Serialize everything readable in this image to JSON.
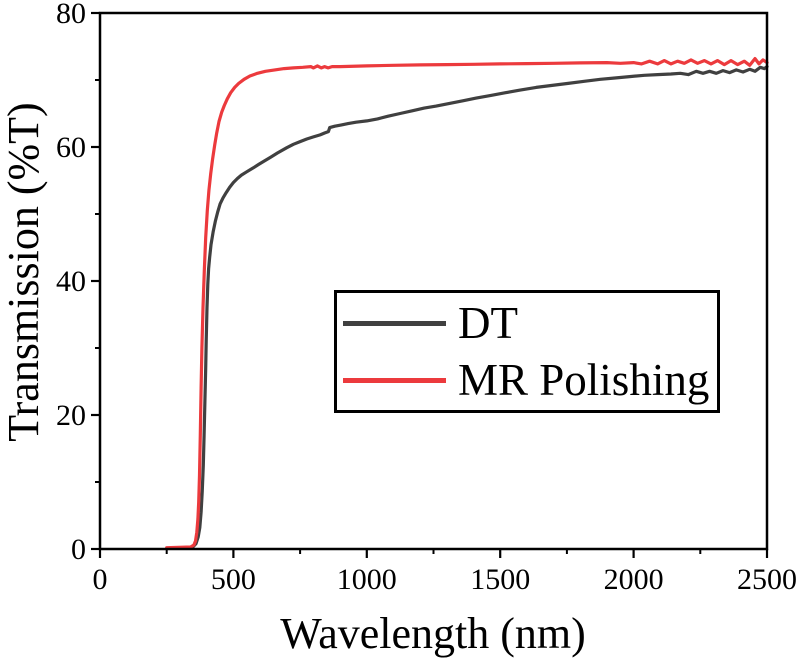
{
  "figure": {
    "xlabel": "Wavelength (nm)",
    "ylabel": "Transmission (%T)"
  },
  "style_colors": {
    "axis": "#000000",
    "background": "#ffffff",
    "dt_line": "#404040",
    "mr_polishing_line": "#ec3a3d"
  },
  "legend": {
    "position": "center-inside",
    "entries": [
      {
        "label": "DT",
        "color": "#404040"
      },
      {
        "label": "MR Polishing",
        "color": "#ec3a3d"
      }
    ]
  },
  "chart_data": {
    "type": "line",
    "title": "",
    "xlabel": "Wavelength (nm)",
    "ylabel": "Transmission (%T)",
    "xlim": [
      0,
      2500
    ],
    "ylim": [
      0,
      80
    ],
    "x_major_ticks": [
      0,
      500,
      1000,
      1500,
      2000,
      2500
    ],
    "x_minor_ticks": [
      250,
      750,
      1250,
      1750,
      2250
    ],
    "y_major_ticks": [
      0,
      20,
      40,
      60,
      80
    ],
    "y_minor_ticks": [
      10,
      30,
      50,
      70
    ],
    "grid": false,
    "legend_position": "center-inside",
    "series": [
      {
        "name": "DT",
        "color": "#404040",
        "points": [
          [
            275,
            0.1
          ],
          [
            348,
            0.3
          ],
          [
            360,
            0.8
          ],
          [
            368,
            1.8
          ],
          [
            374,
            3.2
          ],
          [
            379,
            5.5
          ],
          [
            383,
            8.5
          ],
          [
            387,
            12.5
          ],
          [
            390,
            17
          ],
          [
            393,
            22
          ],
          [
            396,
            27
          ],
          [
            398,
            31
          ],
          [
            401,
            36
          ],
          [
            404,
            39.5
          ],
          [
            407,
            41.8
          ],
          [
            411,
            43.6
          ],
          [
            416,
            45.4
          ],
          [
            424,
            47.3
          ],
          [
            432,
            48.9
          ],
          [
            441,
            50.3
          ],
          [
            450,
            51.5
          ],
          [
            461,
            52.4
          ],
          [
            473,
            53.2
          ],
          [
            486,
            54.0
          ],
          [
            500,
            54.7
          ],
          [
            515,
            55.3
          ],
          [
            530,
            55.8
          ],
          [
            550,
            56.3
          ],
          [
            575,
            56.9
          ],
          [
            595,
            57.4
          ],
          [
            615,
            57.9
          ],
          [
            640,
            58.5
          ],
          [
            665,
            59.1
          ],
          [
            700,
            59.9
          ],
          [
            725,
            60.4
          ],
          [
            750,
            60.8
          ],
          [
            775,
            61.2
          ],
          [
            800,
            61.5
          ],
          [
            825,
            61.8
          ],
          [
            843,
            62.1
          ],
          [
            856,
            62.3
          ],
          [
            861,
            62.9
          ],
          [
            880,
            63.1
          ],
          [
            905,
            63.3
          ],
          [
            930,
            63.5
          ],
          [
            960,
            63.7
          ],
          [
            1000,
            63.9
          ],
          [
            1040,
            64.2
          ],
          [
            1080,
            64.6
          ],
          [
            1125,
            65.0
          ],
          [
            1170,
            65.4
          ],
          [
            1215,
            65.8
          ],
          [
            1260,
            66.1
          ],
          [
            1310,
            66.5
          ],
          [
            1360,
            66.9
          ],
          [
            1410,
            67.3
          ],
          [
            1465,
            67.7
          ],
          [
            1520,
            68.1
          ],
          [
            1575,
            68.5
          ],
          [
            1635,
            68.9
          ],
          [
            1695,
            69.2
          ],
          [
            1755,
            69.5
          ],
          [
            1815,
            69.8
          ],
          [
            1875,
            70.1
          ],
          [
            1930,
            70.3
          ],
          [
            1985,
            70.5
          ],
          [
            2040,
            70.7
          ],
          [
            2090,
            70.8
          ],
          [
            2140,
            70.9
          ],
          [
            2175,
            71.0
          ],
          [
            2205,
            70.8
          ],
          [
            2235,
            71.3
          ],
          [
            2260,
            71.0
          ],
          [
            2285,
            71.3
          ],
          [
            2310,
            71.0
          ],
          [
            2335,
            71.4
          ],
          [
            2360,
            71.1
          ],
          [
            2385,
            71.5
          ],
          [
            2410,
            71.2
          ],
          [
            2435,
            71.6
          ],
          [
            2455,
            71.3
          ],
          [
            2475,
            71.9
          ],
          [
            2490,
            71.7
          ],
          [
            2500,
            72.0
          ]
        ]
      },
      {
        "name": "MR Polishing",
        "color": "#ec3a3d",
        "points": [
          [
            250,
            0.2
          ],
          [
            340,
            0.3
          ],
          [
            352,
            0.6
          ],
          [
            358,
            1.2
          ],
          [
            363,
            2.5
          ],
          [
            367,
            4.5
          ],
          [
            370,
            7
          ],
          [
            373,
            11
          ],
          [
            376,
            17
          ],
          [
            379,
            24
          ],
          [
            382,
            30
          ],
          [
            386,
            36
          ],
          [
            391,
            41.5
          ],
          [
            396,
            46.5
          ],
          [
            402,
            50.5
          ],
          [
            408,
            53.5
          ],
          [
            415,
            56
          ],
          [
            422,
            58.2
          ],
          [
            430,
            60.3
          ],
          [
            437,
            62
          ],
          [
            446,
            63.8
          ],
          [
            456,
            65.2
          ],
          [
            466,
            66.2
          ],
          [
            477,
            67.2
          ],
          [
            490,
            68.1
          ],
          [
            505,
            68.9
          ],
          [
            520,
            69.5
          ],
          [
            540,
            70.1
          ],
          [
            562,
            70.6
          ],
          [
            590,
            71.0
          ],
          [
            620,
            71.3
          ],
          [
            655,
            71.5
          ],
          [
            690,
            71.7
          ],
          [
            725,
            71.8
          ],
          [
            760,
            71.9
          ],
          [
            790,
            72.0
          ],
          [
            800,
            71.8
          ],
          [
            815,
            72.1
          ],
          [
            830,
            71.8
          ],
          [
            842,
            72.0
          ],
          [
            855,
            71.8
          ],
          [
            870,
            72.0
          ],
          [
            900,
            72.0
          ],
          [
            1000,
            72.1
          ],
          [
            1100,
            72.2
          ],
          [
            1200,
            72.25
          ],
          [
            1300,
            72.3
          ],
          [
            1400,
            72.35
          ],
          [
            1500,
            72.4
          ],
          [
            1600,
            72.45
          ],
          [
            1700,
            72.5
          ],
          [
            1800,
            72.55
          ],
          [
            1900,
            72.6
          ],
          [
            1950,
            72.5
          ],
          [
            2000,
            72.6
          ],
          [
            2030,
            72.4
          ],
          [
            2060,
            72.8
          ],
          [
            2090,
            72.4
          ],
          [
            2115,
            72.9
          ],
          [
            2140,
            72.4
          ],
          [
            2165,
            72.8
          ],
          [
            2190,
            72.5
          ],
          [
            2215,
            73.0
          ],
          [
            2240,
            72.5
          ],
          [
            2265,
            72.9
          ],
          [
            2290,
            72.4
          ],
          [
            2315,
            72.9
          ],
          [
            2340,
            72.3
          ],
          [
            2365,
            72.9
          ],
          [
            2390,
            72.3
          ],
          [
            2415,
            72.8
          ],
          [
            2435,
            72.2
          ],
          [
            2455,
            73.2
          ],
          [
            2470,
            72.4
          ],
          [
            2485,
            73.0
          ],
          [
            2500,
            72.6
          ]
        ]
      }
    ]
  }
}
